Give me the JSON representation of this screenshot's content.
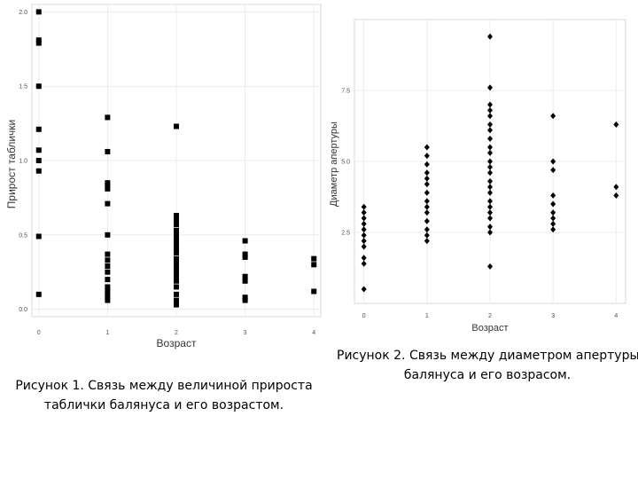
{
  "chart_data": [
    {
      "type": "scatter",
      "title": "",
      "xlabel": "Возраст",
      "ylabel": "Прирост таблички",
      "x_ticks": [
        "0",
        "1",
        "2",
        "3",
        "4"
      ],
      "y_ticks": [
        "0.0",
        "0.5",
        "1.0",
        "1.5",
        "2.0"
      ],
      "xlim": [
        -0.1,
        4.1
      ],
      "ylim": [
        -0.05,
        2.05
      ],
      "grid": true,
      "points": [
        [
          0,
          2.0
        ],
        [
          0,
          1.81
        ],
        [
          0,
          1.79
        ],
        [
          0,
          1.5
        ],
        [
          0,
          1.21
        ],
        [
          0,
          1.07
        ],
        [
          0,
          1.0
        ],
        [
          0,
          0.93
        ],
        [
          0,
          0.49
        ],
        [
          0,
          0.1
        ],
        [
          1,
          1.29
        ],
        [
          1,
          1.06
        ],
        [
          1,
          0.85
        ],
        [
          1,
          0.83
        ],
        [
          1,
          0.81
        ],
        [
          1,
          0.71
        ],
        [
          1,
          0.5
        ],
        [
          1,
          0.37
        ],
        [
          1,
          0.33
        ],
        [
          1,
          0.29
        ],
        [
          1,
          0.25
        ],
        [
          1,
          0.2
        ],
        [
          1,
          0.15
        ],
        [
          1,
          0.12
        ],
        [
          1,
          0.09
        ],
        [
          1,
          0.06
        ],
        [
          2,
          1.23
        ],
        [
          2,
          0.63
        ],
        [
          2,
          0.6
        ],
        [
          2,
          0.57
        ],
        [
          2,
          0.53
        ],
        [
          2,
          0.5
        ],
        [
          2,
          0.47
        ],
        [
          2,
          0.44
        ],
        [
          2,
          0.41
        ],
        [
          2,
          0.38
        ],
        [
          2,
          0.34
        ],
        [
          2,
          0.31
        ],
        [
          2,
          0.28
        ],
        [
          2,
          0.25
        ],
        [
          2,
          0.22
        ],
        [
          2,
          0.19
        ],
        [
          2,
          0.15
        ],
        [
          2,
          0.1
        ],
        [
          2,
          0.06
        ],
        [
          2,
          0.03
        ],
        [
          3,
          0.46
        ],
        [
          3,
          0.37
        ],
        [
          3,
          0.35
        ],
        [
          3,
          0.22
        ],
        [
          3,
          0.19
        ],
        [
          3,
          0.08
        ],
        [
          3,
          0.06
        ],
        [
          4,
          0.34
        ],
        [
          4,
          0.3
        ],
        [
          4,
          0.12
        ]
      ]
    },
    {
      "type": "scatter",
      "title": "",
      "xlabel": "Возраст",
      "ylabel": "Диаметр апертуры",
      "x_ticks": [
        "0",
        "1",
        "2",
        "3",
        "4"
      ],
      "y_ticks": [
        "2.5",
        "5.0",
        "7.5"
      ],
      "y_tick_values": [
        2.5,
        5.0,
        7.5
      ],
      "xlim": [
        -0.15,
        4.15
      ],
      "ylim": [
        0,
        10.0
      ],
      "grid": true,
      "points": [
        [
          0,
          3.4
        ],
        [
          0,
          3.2
        ],
        [
          0,
          3.0
        ],
        [
          0,
          2.8
        ],
        [
          0,
          2.6
        ],
        [
          0,
          2.4
        ],
        [
          0,
          2.2
        ],
        [
          0,
          2.0
        ],
        [
          0,
          1.6
        ],
        [
          0,
          1.4
        ],
        [
          0,
          0.5
        ],
        [
          1,
          5.5
        ],
        [
          1,
          5.2
        ],
        [
          1,
          4.9
        ],
        [
          1,
          4.6
        ],
        [
          1,
          4.4
        ],
        [
          1,
          4.2
        ],
        [
          1,
          3.9
        ],
        [
          1,
          3.6
        ],
        [
          1,
          3.4
        ],
        [
          1,
          3.2
        ],
        [
          1,
          2.9
        ],
        [
          1,
          2.6
        ],
        [
          1,
          2.4
        ],
        [
          1,
          2.2
        ],
        [
          2,
          9.4
        ],
        [
          2,
          7.6
        ],
        [
          2,
          7.0
        ],
        [
          2,
          6.8
        ],
        [
          2,
          6.6
        ],
        [
          2,
          6.3
        ],
        [
          2,
          6.1
        ],
        [
          2,
          5.8
        ],
        [
          2,
          5.5
        ],
        [
          2,
          5.3
        ],
        [
          2,
          5.0
        ],
        [
          2,
          4.8
        ],
        [
          2,
          4.6
        ],
        [
          2,
          4.3
        ],
        [
          2,
          4.1
        ],
        [
          2,
          3.9
        ],
        [
          2,
          3.6
        ],
        [
          2,
          3.4
        ],
        [
          2,
          3.2
        ],
        [
          2,
          3.0
        ],
        [
          2,
          2.7
        ],
        [
          2,
          2.5
        ],
        [
          2,
          1.3
        ],
        [
          3,
          6.6
        ],
        [
          3,
          5.0
        ],
        [
          3,
          4.7
        ],
        [
          3,
          3.8
        ],
        [
          3,
          3.5
        ],
        [
          3,
          3.2
        ],
        [
          3,
          3.0
        ],
        [
          3,
          2.8
        ],
        [
          3,
          2.6
        ],
        [
          4,
          6.3
        ],
        [
          4,
          4.1
        ],
        [
          4,
          3.8
        ]
      ]
    }
  ],
  "captions": {
    "figure1_line1": "Рисунок 1. Связь между величиной прироста",
    "figure1_line2": "таблички балянуса и его возрастом.",
    "figure2_line1": "Рисунок 2. Связь между диаметром апертуры",
    "figure2_line2": "балянуса и его возрасом."
  },
  "colors": {
    "point": "#000000",
    "grid": "#ececec",
    "tick_text": "#4d4d4d",
    "panel_border": "#d9d9d9"
  }
}
